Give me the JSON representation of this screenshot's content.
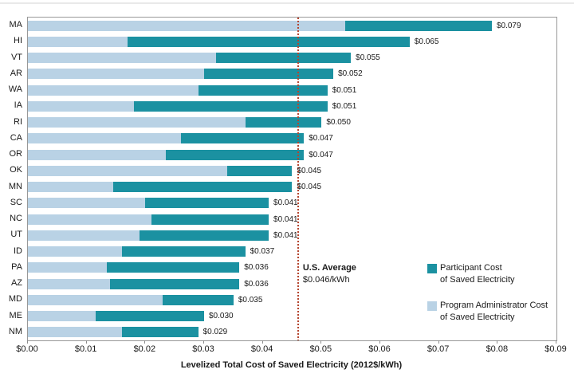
{
  "chart_data": {
    "type": "bar",
    "orientation": "horizontal",
    "stacked": true,
    "grid": false,
    "title": "",
    "xlabel": "Levelized Total Cost of Saved Electricity (2012$/kWh)",
    "ylabel": "",
    "xlim": [
      0,
      0.09
    ],
    "x_tick_labels": [
      "$0.00",
      "$0.01",
      "$0.02",
      "$0.03",
      "$0.04",
      "$0.05",
      "$0.06",
      "$0.07",
      "$0.08",
      "$0.09"
    ],
    "categories": [
      "MA",
      "HI",
      "VT",
      "AR",
      "WA",
      "IA",
      "RI",
      "CA",
      "OR",
      "OK",
      "MN",
      "SC",
      "NC",
      "UT",
      "ID",
      "PA",
      "AZ",
      "MD",
      "ME",
      "NM"
    ],
    "series": [
      {
        "name": "Program Administrator Cost of Saved Electricity",
        "color": "#b9d2e5",
        "values": [
          0.054,
          0.017,
          0.032,
          0.03,
          0.029,
          0.018,
          0.037,
          0.026,
          0.0235,
          0.034,
          0.0145,
          0.02,
          0.021,
          0.019,
          0.016,
          0.0135,
          0.014,
          0.023,
          0.0115,
          0.016
        ]
      },
      {
        "name": "Participant Cost of Saved Electricity",
        "color": "#1b91a1",
        "values": [
          0.025,
          0.048,
          0.023,
          0.022,
          0.022,
          0.033,
          0.013,
          0.021,
          0.0235,
          0.011,
          0.0305,
          0.021,
          0.02,
          0.022,
          0.021,
          0.0225,
          0.022,
          0.012,
          0.0185,
          0.013
        ]
      }
    ],
    "total_labels": [
      "$0.079",
      "$0.065",
      "$0.055",
      "$0.052",
      "$0.051",
      "$0.051",
      "$0.050",
      "$0.047",
      "$0.047",
      "$0.045",
      "$0.045",
      "$0.041",
      "$0.041",
      "$0.041",
      "$0.037",
      "$0.036",
      "$0.036",
      "$0.035",
      "$0.030",
      "$0.029"
    ],
    "average_line": {
      "value": 0.046,
      "title": "U.S. Average",
      "subtitle": "$0.046/kWh",
      "color": "#b5452f"
    },
    "legend": {
      "position": "inside-right",
      "items": [
        {
          "line1": "Participant Cost",
          "line2": "of Saved Electricity",
          "color": "#1b91a1"
        },
        {
          "line1": "Program Administrator Cost",
          "line2": "of Saved Electricity",
          "color": "#b9d2e5"
        }
      ]
    }
  }
}
